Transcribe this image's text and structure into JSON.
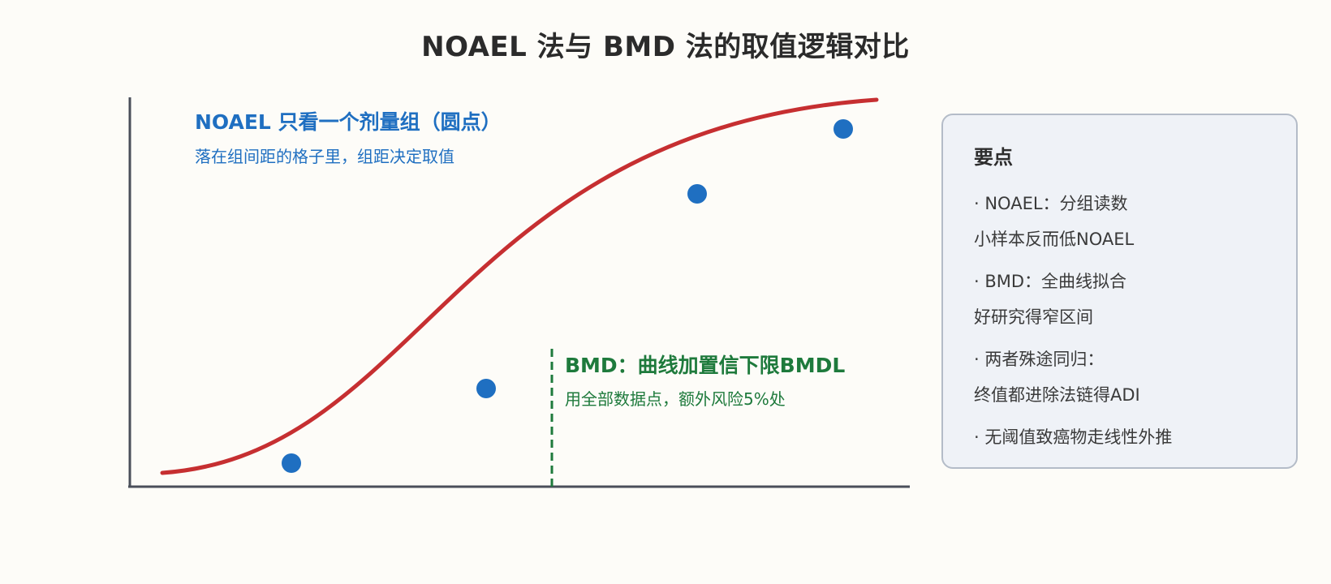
{
  "title": "NOAEL 法与 BMD 法的取值逻辑对比",
  "noael_note": {
    "title": "NOAEL 只看一个剂量组（圆点）",
    "subtitle": "落在组间距的格子里，组距决定取值",
    "color": "#1f6fc1"
  },
  "bmd_note": {
    "title": "BMD：曲线加置信下限BMDL",
    "subtitle": "用全部数据点，额外风险5%处",
    "color": "#1e7a3c"
  },
  "colors": {
    "curve": "#c62f31",
    "points": "#1f6fc1",
    "bmdl_line": "#1e7a3c",
    "axes": "#4a4f5a"
  },
  "panel": {
    "heading": "要点",
    "points": [
      {
        "line1": "· NOAEL：分组读数",
        "line2": "小样本反而低NOAEL"
      },
      {
        "line1": "· BMD：全曲线拟合",
        "line2": "好研究得窄区间"
      },
      {
        "line1": "· 两者殊途同归：",
        "line2": "终值都进除法链得ADI"
      },
      {
        "line1": "· 无阈值致癌物走线性外推",
        "line2": ""
      }
    ]
  }
}
